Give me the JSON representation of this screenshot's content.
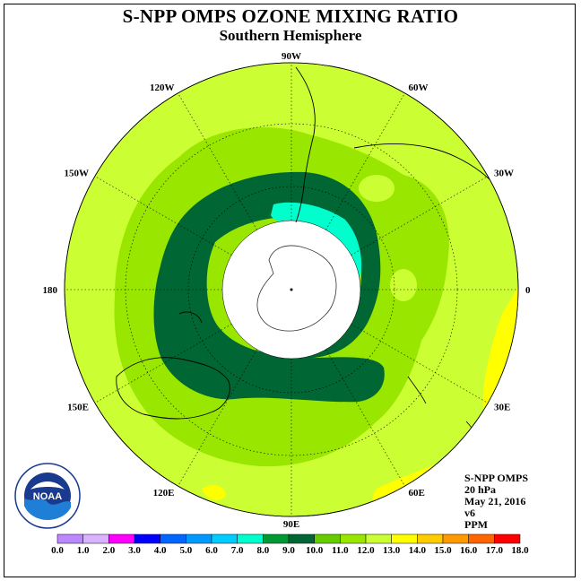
{
  "header": {
    "title": "S-NPP OMPS OZONE MIXING RATIO",
    "subtitle": "Southern Hemisphere"
  },
  "map": {
    "projection": "south-polar-stereographic",
    "longitude_labels": [
      "90W",
      "60W",
      "30W",
      "0",
      "30E",
      "60E",
      "90E",
      "120E",
      "150E",
      "180",
      "150W",
      "120W"
    ],
    "field": "ozone mixing ratio",
    "regions": [
      {
        "range": "10.0-11.0 ppm",
        "color": "#006633",
        "description": "dark green ring around the pole"
      },
      {
        "range": "8.0-9.0 ppm",
        "color": "#00ffcc",
        "description": "cyan patch near South America"
      },
      {
        "range": "12.0-13.0 ppm",
        "color": "#ffff00",
        "description": "yellow patches near 30E and 60E"
      }
    ]
  },
  "info": {
    "instrument": "S-NPP OMPS",
    "level": "20 hPa",
    "date": "May 21, 2016",
    "version": "v6",
    "units": "PPM"
  },
  "logo": {
    "name": "NOAA",
    "ring_text": "NATIONAL OCEANIC AND ATMOSPHERIC ADMINISTRATION · U.S. DEPARTMENT OF COMMERCE"
  },
  "colorbar": {
    "ticks": [
      "0.0",
      "1.0",
      "2.0",
      "3.0",
      "4.0",
      "5.0",
      "6.0",
      "7.0",
      "8.0",
      "9.0",
      "10.0",
      "11.0",
      "12.0",
      "13.0",
      "14.0",
      "15.0",
      "16.0",
      "17.0",
      "18.0"
    ],
    "colors": [
      "#bb88ff",
      "#d9b3ff",
      "#ff00ff",
      "#0000ff",
      "#0066ff",
      "#0099ff",
      "#00ccff",
      "#00ffcc",
      "#009933",
      "#006633",
      "#66cc00",
      "#99e600",
      "#ccff33",
      "#ffff00",
      "#ffcc00",
      "#ff9900",
      "#ff6600",
      "#ff0000",
      "#996633"
    ]
  }
}
